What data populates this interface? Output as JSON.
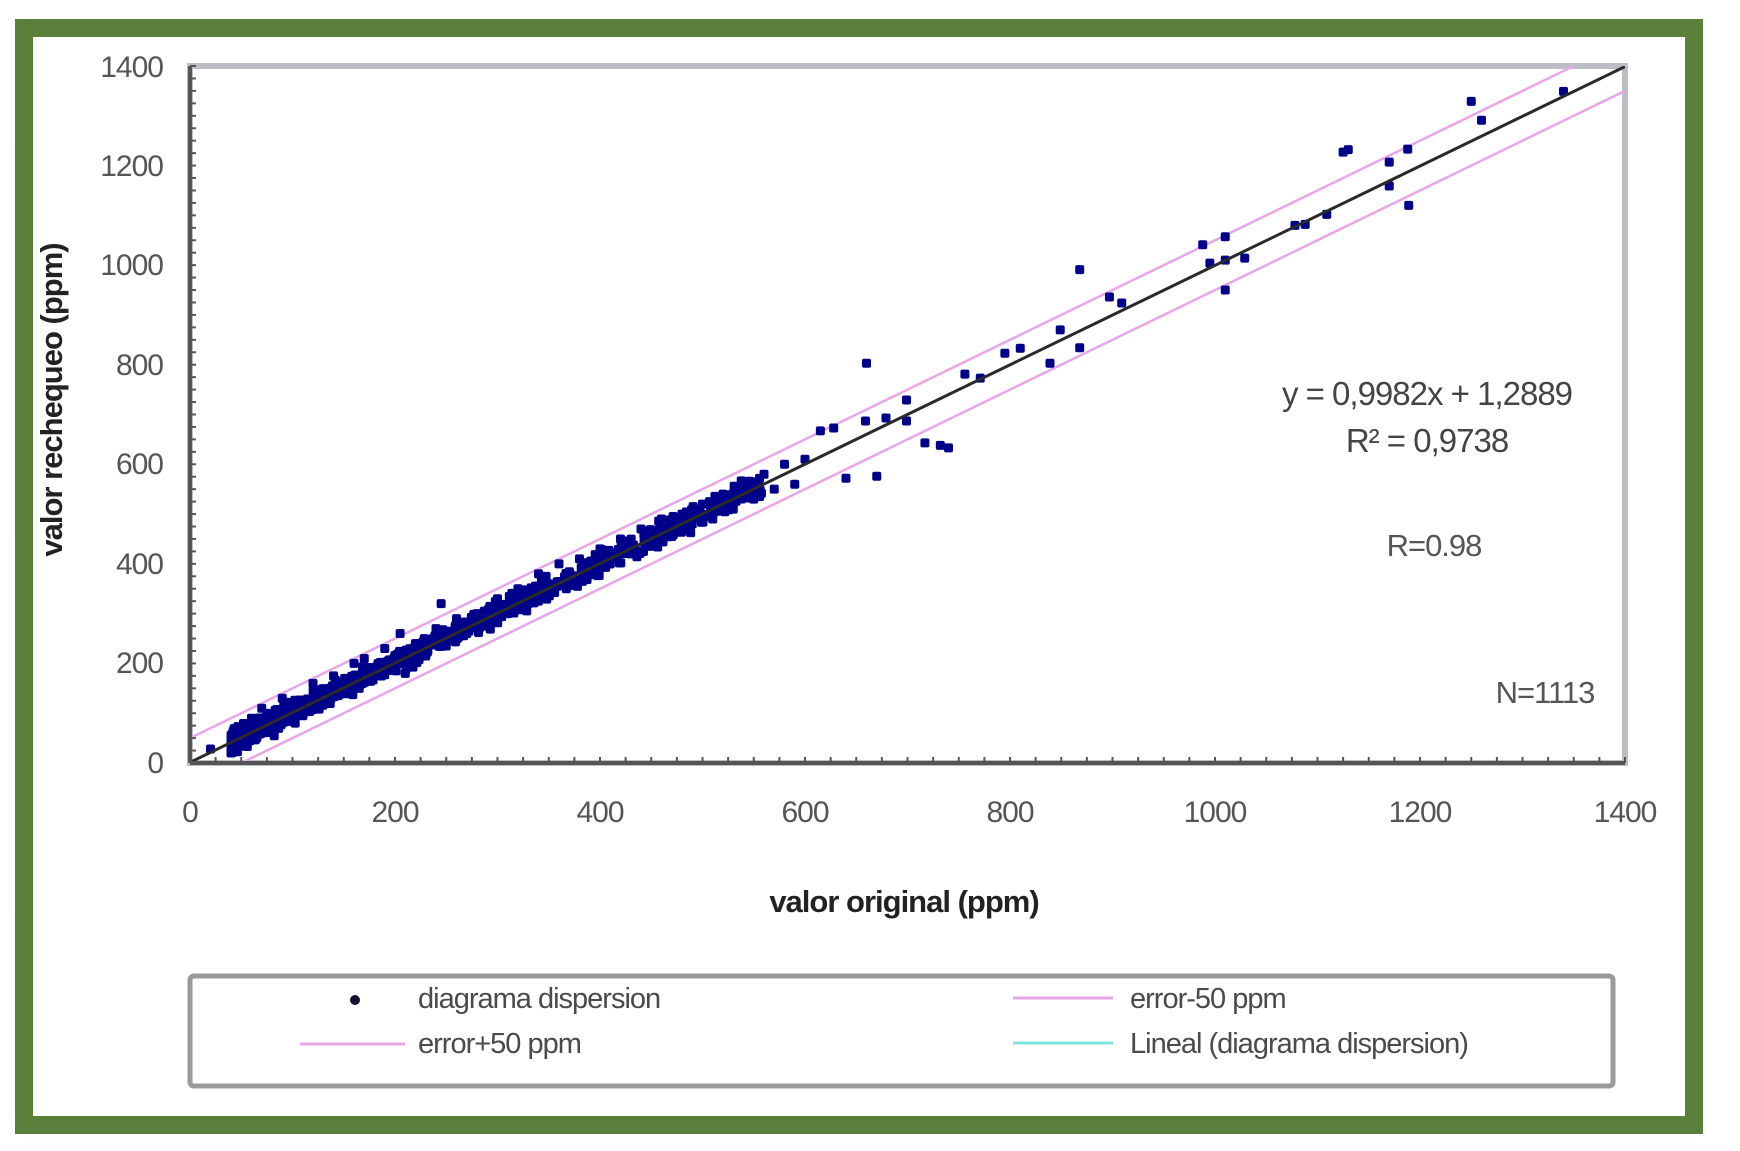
{
  "chart_data": {
    "type": "scatter",
    "title": "",
    "xlabel": "valor original (ppm)",
    "ylabel": "valor rechequeo (ppm)",
    "xlim": [
      0,
      1400
    ],
    "ylim": [
      0,
      1400
    ],
    "xticks": [
      "0",
      "200",
      "400",
      "600",
      "800",
      "1000",
      "1200",
      "1400"
    ],
    "yticks": [
      "0",
      "200",
      "400",
      "600",
      "800",
      "1000",
      "1200",
      "1400"
    ],
    "grid": false,
    "legend_position": "bottom",
    "annotations": {
      "equation": "y = 0,9982x + 1,2889",
      "r_squared": "R² = 0,9738",
      "r": "R=0.98",
      "n": "N=1113"
    },
    "trendline": {
      "slope": 0.9982,
      "intercept": 1.2889
    },
    "error_band_ppm": 50,
    "series": [
      {
        "name": "diagrama dispersion",
        "kind": "points",
        "color": "#00008b"
      },
      {
        "name": "error+50 ppm",
        "kind": "line",
        "color": "#e8a6e8",
        "offset": 50
      },
      {
        "name": "error-50 ppm",
        "kind": "line",
        "color": "#e8a6e8",
        "offset": -50
      },
      {
        "name": "Lineal (diagrama dispersion)",
        "kind": "line",
        "color": "#2a2a2a",
        "legend_color": "#7fe0e0"
      }
    ],
    "points_sample": [
      [
        20,
        28
      ],
      [
        40,
        20
      ],
      [
        55,
        45
      ],
      [
        60,
        90
      ],
      [
        70,
        110
      ],
      [
        80,
        75
      ],
      [
        90,
        130
      ],
      [
        100,
        110
      ],
      [
        110,
        95
      ],
      [
        120,
        160
      ],
      [
        130,
        120
      ],
      [
        140,
        175
      ],
      [
        150,
        140
      ],
      [
        160,
        200
      ],
      [
        165,
        150
      ],
      [
        170,
        210
      ],
      [
        180,
        185
      ],
      [
        190,
        230
      ],
      [
        200,
        200
      ],
      [
        205,
        260
      ],
      [
        210,
        180
      ],
      [
        220,
        240
      ],
      [
        230,
        215
      ],
      [
        240,
        270
      ],
      [
        245,
        320
      ],
      [
        250,
        235
      ],
      [
        260,
        290
      ],
      [
        270,
        260
      ],
      [
        280,
        300
      ],
      [
        290,
        275
      ],
      [
        300,
        330
      ],
      [
        310,
        300
      ],
      [
        320,
        350
      ],
      [
        330,
        320
      ],
      [
        340,
        380
      ],
      [
        350,
        340
      ],
      [
        360,
        400
      ],
      [
        370,
        360
      ],
      [
        380,
        410
      ],
      [
        390,
        380
      ],
      [
        400,
        430
      ],
      [
        410,
        400
      ],
      [
        420,
        450
      ],
      [
        430,
        420
      ],
      [
        440,
        470
      ],
      [
        450,
        440
      ],
      [
        460,
        490
      ],
      [
        470,
        455
      ],
      [
        480,
        500
      ],
      [
        490,
        480
      ],
      [
        500,
        520
      ],
      [
        510,
        490
      ],
      [
        520,
        540
      ],
      [
        530,
        510
      ],
      [
        540,
        560
      ],
      [
        550,
        530
      ],
      [
        560,
        580
      ],
      [
        570,
        550
      ],
      [
        580,
        600
      ],
      [
        590,
        560
      ],
      [
        600,
        610
      ],
      [
        615,
        667
      ],
      [
        628,
        673
      ],
      [
        640,
        572
      ],
      [
        659,
        687
      ],
      [
        660,
        803
      ],
      [
        670,
        576
      ],
      [
        679,
        693
      ],
      [
        699,
        687
      ],
      [
        699,
        729
      ],
      [
        717,
        643
      ],
      [
        732,
        638
      ],
      [
        740,
        633
      ],
      [
        756,
        781
      ],
      [
        771,
        773
      ],
      [
        795,
        823
      ],
      [
        810,
        833
      ],
      [
        839,
        803
      ],
      [
        849,
        870
      ],
      [
        868,
        834
      ],
      [
        868,
        991
      ],
      [
        897,
        936
      ],
      [
        909,
        924
      ],
      [
        988,
        1041
      ],
      [
        995,
        1004
      ],
      [
        1010,
        1057
      ],
      [
        1010,
        1010
      ],
      [
        1010,
        950
      ],
      [
        1029,
        1014
      ],
      [
        1078,
        1080
      ],
      [
        1088,
        1082
      ],
      [
        1109,
        1102
      ],
      [
        1125,
        1227
      ],
      [
        1130,
        1232
      ],
      [
        1170,
        1207
      ],
      [
        1170,
        1159
      ],
      [
        1188,
        1233
      ],
      [
        1189,
        1120
      ],
      [
        1250,
        1329
      ],
      [
        1260,
        1291
      ],
      [
        1340,
        1349
      ]
    ]
  },
  "legend": {
    "items": [
      {
        "label": "diagrama dispersion",
        "symbol": "dot"
      },
      {
        "label": "error-50 ppm",
        "symbol": "line"
      },
      {
        "label": "error+50 ppm",
        "symbol": "line"
      },
      {
        "label": "Lineal (diagrama dispersion)",
        "symbol": "line"
      }
    ]
  },
  "colors": {
    "frame_border": "#5a7f3a",
    "points": "#00008b",
    "error_lines": "#e8a6e8",
    "trend_line": "#2a2a2a",
    "legend_trend": "#7fe0e0",
    "axis": "#555555"
  }
}
